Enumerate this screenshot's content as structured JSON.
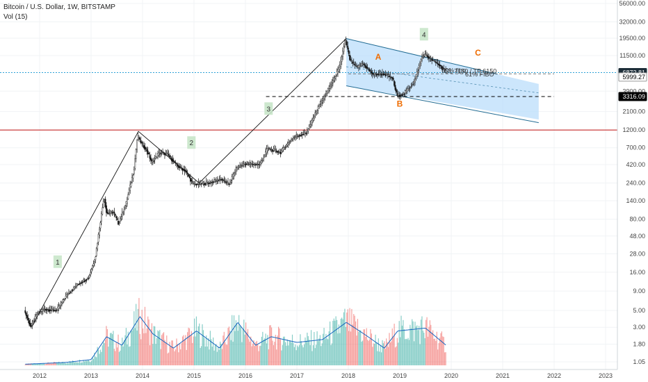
{
  "header": {
    "title": "Bitcoin / U.S. Dollar, 1W, BITSTAMP",
    "indicator": "Vol (15)"
  },
  "chart_data": {
    "type": "candlestick",
    "scale": "log",
    "x_ticks": [
      "2012",
      "2013",
      "2014",
      "2015",
      "2016",
      "2017",
      "2018",
      "2019",
      "2020",
      "2021",
      "2022",
      "2023"
    ],
    "y_ticks": [
      {
        "label": "56000.00",
        "value": 56000
      },
      {
        "label": "32000.00",
        "value": 32000
      },
      {
        "label": "19500.00",
        "value": 19500
      },
      {
        "label": "11500.00",
        "value": 11500
      },
      {
        "label": "3900.00",
        "value": 3900
      },
      {
        "label": "2100.00",
        "value": 2100
      },
      {
        "label": "1200.00",
        "value": 1200
      },
      {
        "label": "700.00",
        "value": 700
      },
      {
        "label": "420.00",
        "value": 420
      },
      {
        "label": "240.00",
        "value": 240
      },
      {
        "label": "140.00",
        "value": 140
      },
      {
        "label": "80.00",
        "value": 80
      },
      {
        "label": "48.00",
        "value": 48
      },
      {
        "label": "28.00",
        "value": 28
      },
      {
        "label": "16.00",
        "value": 16
      },
      {
        "label": "9.00",
        "value": 9
      },
      {
        "label": "5.00",
        "value": 5
      },
      {
        "label": "3.00",
        "value": 3
      },
      {
        "label": "1.80",
        "value": 1.8
      },
      {
        "label": "1.05",
        "value": 1.05
      }
    ],
    "price_path": [
      {
        "t": 2011.72,
        "p": 5
      },
      {
        "t": 2011.85,
        "p": 3
      },
      {
        "t": 2011.97,
        "p": 4.5
      },
      {
        "t": 2012.1,
        "p": 5.2
      },
      {
        "t": 2012.35,
        "p": 5
      },
      {
        "t": 2012.55,
        "p": 8
      },
      {
        "t": 2012.75,
        "p": 11
      },
      {
        "t": 2012.97,
        "p": 13.5
      },
      {
        "t": 2013.1,
        "p": 25
      },
      {
        "t": 2013.27,
        "p": 160
      },
      {
        "t": 2013.32,
        "p": 95
      },
      {
        "t": 2013.45,
        "p": 100
      },
      {
        "t": 2013.55,
        "p": 70
      },
      {
        "t": 2013.7,
        "p": 130
      },
      {
        "t": 2013.85,
        "p": 350
      },
      {
        "t": 2013.92,
        "p": 1000
      },
      {
        "t": 2014.0,
        "p": 800
      },
      {
        "t": 2014.1,
        "p": 650
      },
      {
        "t": 2014.2,
        "p": 450
      },
      {
        "t": 2014.35,
        "p": 600
      },
      {
        "t": 2014.5,
        "p": 580
      },
      {
        "t": 2014.7,
        "p": 400
      },
      {
        "t": 2014.85,
        "p": 350
      },
      {
        "t": 2015.0,
        "p": 230
      },
      {
        "t": 2015.3,
        "p": 240
      },
      {
        "t": 2015.55,
        "p": 270
      },
      {
        "t": 2015.7,
        "p": 230
      },
      {
        "t": 2015.85,
        "p": 380
      },
      {
        "t": 2016.0,
        "p": 430
      },
      {
        "t": 2016.3,
        "p": 420
      },
      {
        "t": 2016.45,
        "p": 680
      },
      {
        "t": 2016.7,
        "p": 610
      },
      {
        "t": 2016.95,
        "p": 960
      },
      {
        "t": 2017.2,
        "p": 1100
      },
      {
        "t": 2017.45,
        "p": 2500
      },
      {
        "t": 2017.65,
        "p": 4300
      },
      {
        "t": 2017.85,
        "p": 8000
      },
      {
        "t": 2017.96,
        "p": 19000
      },
      {
        "t": 2018.05,
        "p": 10000
      },
      {
        "t": 2018.2,
        "p": 8000
      },
      {
        "t": 2018.3,
        "p": 9000
      },
      {
        "t": 2018.5,
        "p": 6500
      },
      {
        "t": 2018.7,
        "p": 6600
      },
      {
        "t": 2018.88,
        "p": 5800
      },
      {
        "t": 2018.96,
        "p": 3400
      },
      {
        "t": 2019.1,
        "p": 3600
      },
      {
        "t": 2019.3,
        "p": 5200
      },
      {
        "t": 2019.45,
        "p": 11000
      },
      {
        "t": 2019.5,
        "p": 12000
      },
      {
        "t": 2019.65,
        "p": 10000
      },
      {
        "t": 2019.8,
        "p": 8500
      },
      {
        "t": 2019.9,
        "p": 7300
      }
    ],
    "volume_path": [
      {
        "t": 2011.72,
        "v": 0.02
      },
      {
        "t": 2012.0,
        "v": 0.03
      },
      {
        "t": 2012.5,
        "v": 0.05
      },
      {
        "t": 2013.0,
        "v": 0.1
      },
      {
        "t": 2013.3,
        "v": 0.5
      },
      {
        "t": 2013.6,
        "v": 0.35
      },
      {
        "t": 2013.95,
        "v": 0.85
      },
      {
        "t": 2014.2,
        "v": 0.55
      },
      {
        "t": 2014.6,
        "v": 0.3
      },
      {
        "t": 2015.05,
        "v": 0.6
      },
      {
        "t": 2015.5,
        "v": 0.3
      },
      {
        "t": 2015.85,
        "v": 0.75
      },
      {
        "t": 2016.2,
        "v": 0.35
      },
      {
        "t": 2016.5,
        "v": 0.5
      },
      {
        "t": 2017.0,
        "v": 0.4
      },
      {
        "t": 2017.5,
        "v": 0.45
      },
      {
        "t": 2017.96,
        "v": 0.75
      },
      {
        "t": 2018.3,
        "v": 0.55
      },
      {
        "t": 2018.7,
        "v": 0.3
      },
      {
        "t": 2018.96,
        "v": 0.6
      },
      {
        "t": 2019.5,
        "v": 0.65
      },
      {
        "t": 2019.9,
        "v": 0.35
      }
    ],
    "price_tags": [
      {
        "label": "6872.81",
        "value": 6872.81,
        "bg": "#1c2d38",
        "fg": "#ffffff"
      },
      {
        "label": "5999.27",
        "value": 5999.27,
        "bg": "#ffffff",
        "fg": "#000000"
      },
      {
        "label": "3316.09",
        "value": 3316.09,
        "bg": "#000000",
        "fg": "#ffffff"
      }
    ],
    "horizontal_levels": [
      {
        "value": 6872.81,
        "style": "dotted",
        "color": "#2a9fd6"
      },
      {
        "value": 3316.09,
        "style": "dashed",
        "color": "#000000"
      },
      {
        "value": 1200,
        "style": "solid",
        "color": "#c62828"
      }
    ],
    "wave_labels": [
      {
        "text": "1",
        "t": 2012.35,
        "p": 22
      },
      {
        "text": "2",
        "t": 2014.95,
        "p": 820
      },
      {
        "text": "3",
        "t": 2016.45,
        "p": 2300
      },
      {
        "text": "4",
        "t": 2019.47,
        "p": 22000
      }
    ],
    "abc_labels": [
      {
        "text": "A",
        "t": 2018.58,
        "p": 11000
      },
      {
        "text": "B",
        "t": 2019.0,
        "p": 2650
      },
      {
        "text": "C",
        "t": 2020.52,
        "p": 12500
      }
    ],
    "annotations": [
      {
        "text": "50% fibo",
        "t": 2020.05,
        "p": 7300
      },
      {
        "text": "61% FIBO",
        "t": 2020.55,
        "p": 6500
      },
      {
        "text": "SL 7150 / TP 6150",
        "t": 2020.38,
        "p": 7150
      }
    ],
    "colors": {
      "up": "#26a69a",
      "down": "#ef5350",
      "candle": "#111111",
      "channel_fill": "#bbdefb",
      "channel_line": "#1f6a92",
      "volume_line": "#1565c0",
      "wave_box": "#c8e6c9",
      "abc_text": "#ef6c00"
    }
  }
}
